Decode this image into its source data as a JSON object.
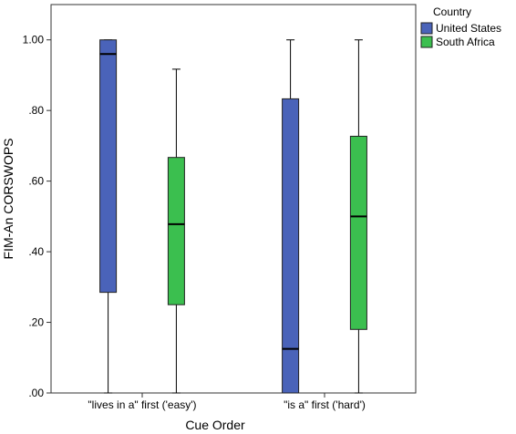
{
  "chart_data": {
    "type": "boxplot",
    "title": "",
    "xlabel": "Cue Order",
    "ylabel": "FIM-An CORSWOPS",
    "ylim": [
      0,
      1.1
    ],
    "yticks": [
      0,
      0.2,
      0.4,
      0.6,
      0.8,
      1.0
    ],
    "ytick_labels": [
      ".00",
      ".20",
      ".40",
      ".60",
      ".80",
      "1.00"
    ],
    "categories": [
      "\"lives in a\" first ('easy')",
      "\"is a\" first ('hard')"
    ],
    "legend": {
      "title": "Country",
      "position": "top-right"
    },
    "grid": false,
    "series": [
      {
        "name": "United States",
        "color": "#4a63b9",
        "boxes": [
          {
            "min": 0.0,
            "q1": 0.285,
            "median": 0.96,
            "q3": 1.0,
            "max": 1.0
          },
          {
            "min": 0.0,
            "q1": 0.0,
            "median": 0.125,
            "q3": 0.833,
            "max": 1.0
          }
        ]
      },
      {
        "name": "South Africa",
        "color": "#3bbf4f",
        "boxes": [
          {
            "min": 0.0,
            "q1": 0.25,
            "median": 0.478,
            "q3": 0.667,
            "max": 0.917
          },
          {
            "min": 0.0,
            "q1": 0.18,
            "median": 0.5,
            "q3": 0.727,
            "max": 1.0
          }
        ]
      }
    ]
  }
}
